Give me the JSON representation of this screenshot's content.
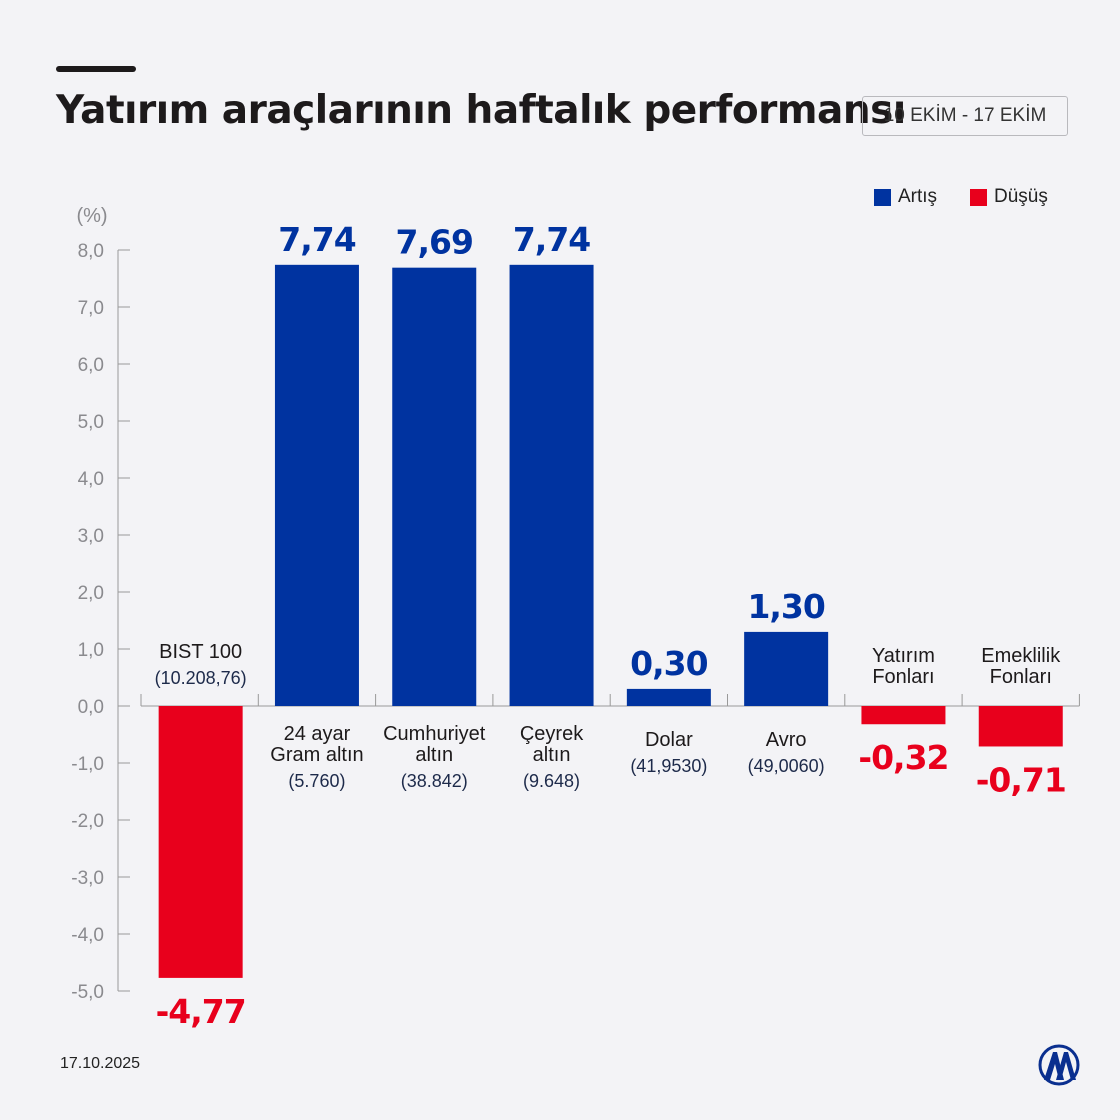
{
  "header": {
    "title": "Yatırım araçlarının haftalık performansı",
    "date_range": "10 EKİM - 17 EKİM"
  },
  "legend": [
    {
      "label": "Artış",
      "color": "#0033a0"
    },
    {
      "label": "Düşüş",
      "color": "#e8001c"
    }
  ],
  "footer": {
    "date": "17.10.2025",
    "logo": "AA"
  },
  "chart_data": {
    "type": "bar",
    "title": "Yatırım araçlarının haftalık performansı",
    "ylabel": "(%)",
    "ylim": [
      -5,
      8
    ],
    "yticks": [
      "8,0",
      "7,0",
      "6,0",
      "5,0",
      "4,0",
      "3,0",
      "2,0",
      "1,0",
      "0,0",
      "-1,0",
      "-2,0",
      "-3,0",
      "-4,0",
      "-5,0"
    ],
    "ytick_values": [
      8,
      7,
      6,
      5,
      4,
      3,
      2,
      1,
      0,
      -1,
      -2,
      -3,
      -4,
      -5
    ],
    "categories": [
      {
        "lines": [
          "BIST 100"
        ],
        "sub": "(10.208,76)"
      },
      {
        "lines": [
          "24 ayar",
          "Gram altın"
        ],
        "sub": "(5.760)"
      },
      {
        "lines": [
          "Cumhuriyet",
          "altın"
        ],
        "sub": "(38.842)"
      },
      {
        "lines": [
          "Çeyrek",
          "altın"
        ],
        "sub": "(9.648)"
      },
      {
        "lines": [
          "Dolar"
        ],
        "sub": "(41,9530)"
      },
      {
        "lines": [
          "Avro"
        ],
        "sub": "(49,0060)"
      },
      {
        "lines": [
          "Yatırım",
          "Fonları"
        ],
        "sub": ""
      },
      {
        "lines": [
          "Emeklilik",
          "Fonları"
        ],
        "sub": ""
      }
    ],
    "values": [
      -4.77,
      7.74,
      7.69,
      7.74,
      0.3,
      1.3,
      -0.32,
      -0.71
    ],
    "value_labels": [
      "-4,77",
      "7,74",
      "7,69",
      "7,74",
      "0,30",
      "1,30",
      "-0,32",
      "-0,71"
    ],
    "colors": {
      "up": "#0033a0",
      "down": "#e8001c"
    }
  }
}
